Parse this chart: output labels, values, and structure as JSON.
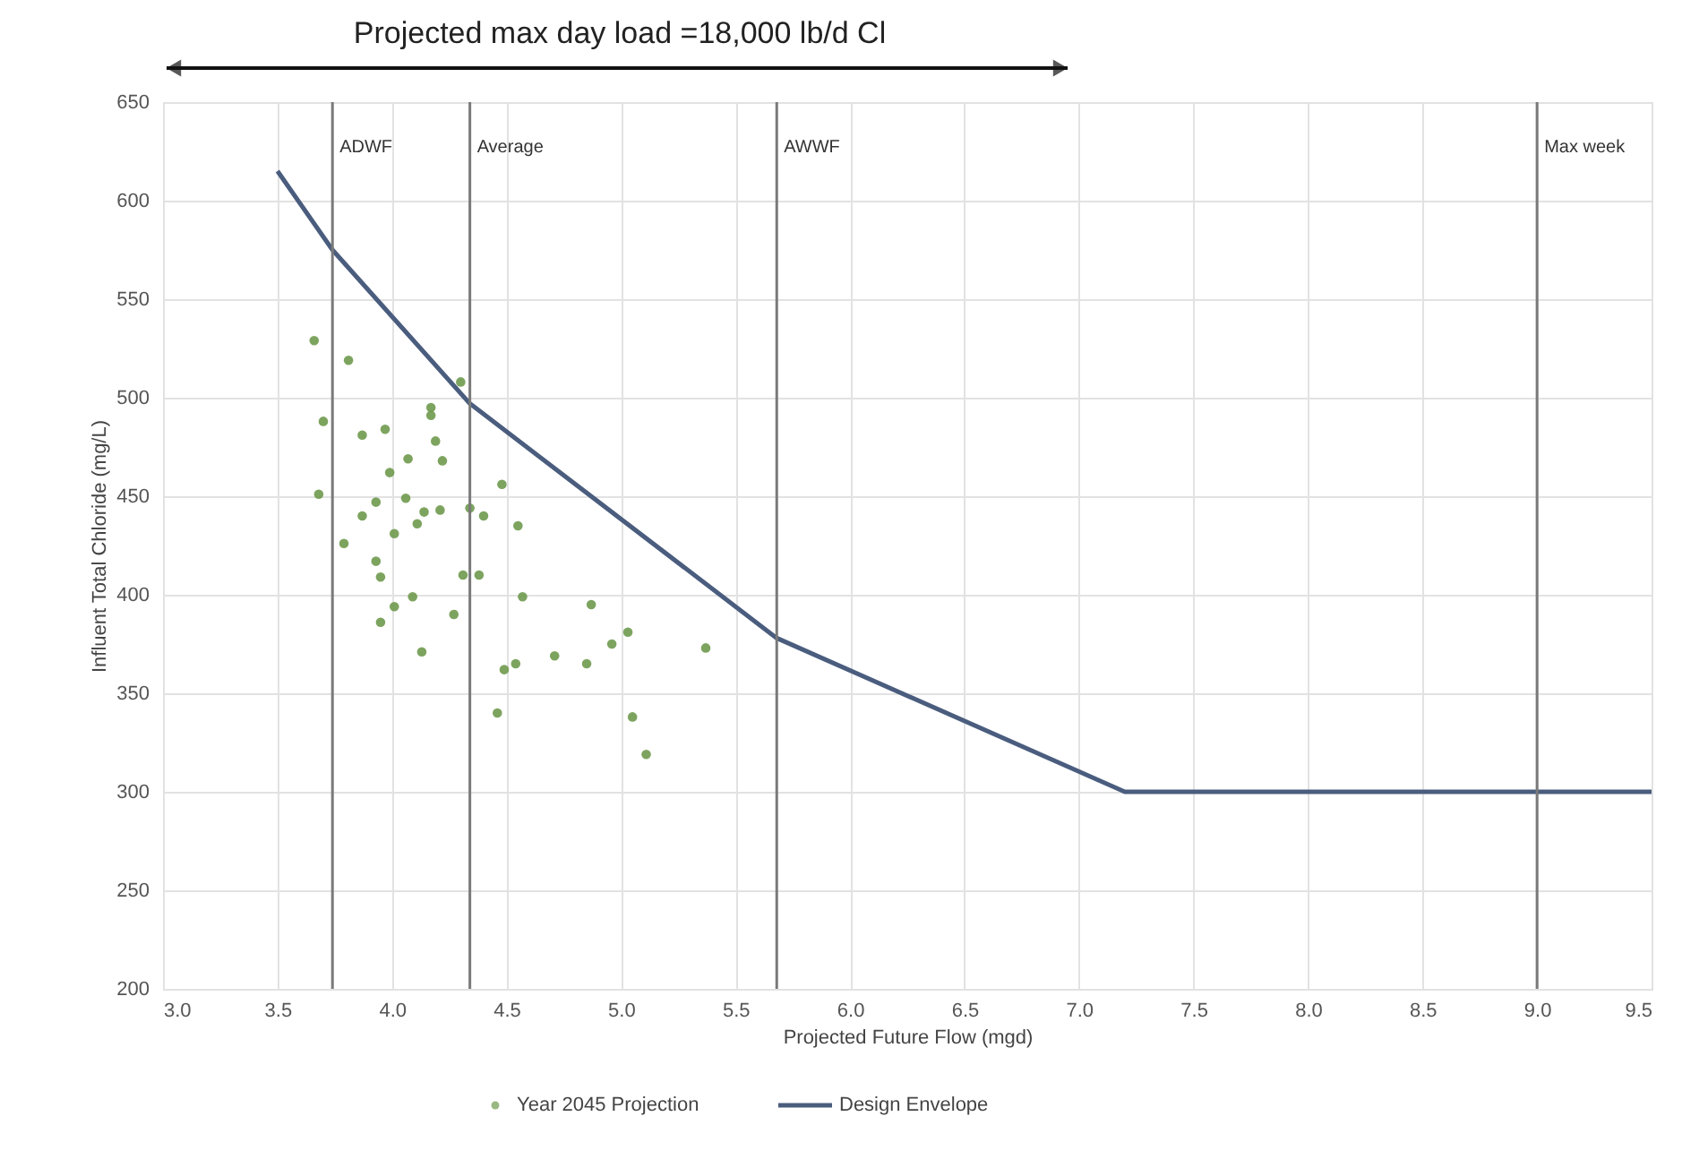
{
  "chart_data": {
    "type": "scatter",
    "title": "Projected max day load =18,000 lb/d Cl",
    "xlabel": "Projected Future Flow (mgd)",
    "ylabel": "Influent Total Chloride (mg/L)",
    "xlim": [
      3.0,
      9.5
    ],
    "xticks": [
      {
        "value": 3.0,
        "label": "3.0"
      },
      3.5,
      {
        "value": 4.0,
        "label": "4.0"
      },
      4.5,
      {
        "value": 5.0,
        "label": "5.0"
      },
      5.5,
      {
        "value": 6.0,
        "label": "6.0"
      },
      6.5,
      {
        "value": 7.0,
        "label": "7.0"
      },
      7.5,
      {
        "value": 8.0,
        "label": "8.0"
      },
      8.5,
      {
        "value": 9.0,
        "label": "9.0"
      },
      9.5
    ],
    "ylim": [
      200,
      650
    ],
    "yticks": [
      200,
      250,
      300,
      350,
      400,
      450,
      500,
      550,
      600,
      650
    ],
    "grid": true,
    "legend": "bottom",
    "series": [
      {
        "name": "Year 2045 Projection",
        "marker": "circle",
        "color": "#6f9a4e",
        "x": [
          3.66,
          3.81,
          3.7,
          3.68,
          3.79,
          3.87,
          3.97,
          4.17,
          4.17,
          4.3,
          4.19,
          4.07,
          4.22,
          3.99,
          3.93,
          4.06,
          4.14,
          4.21,
          3.87,
          4.01,
          4.11,
          4.34,
          4.4,
          4.48,
          4.55,
          3.93,
          3.95,
          4.01,
          3.95,
          4.09,
          4.31,
          4.38,
          4.27,
          4.13,
          4.57,
          4.87,
          4.49,
          4.54,
          4.71,
          4.85,
          4.96,
          5.03,
          5.37,
          4.46,
          5.05,
          5.11
        ],
        "values": [
          529,
          519,
          488,
          451,
          426,
          481,
          484,
          495,
          491,
          508,
          478,
          469,
          468,
          462,
          447,
          449,
          442,
          443,
          440,
          431,
          436,
          444,
          440,
          456,
          435,
          417,
          409,
          394,
          386,
          399,
          410,
          410,
          390,
          371,
          399,
          395,
          362,
          365,
          369,
          365,
          375,
          381,
          373,
          340,
          338,
          319
        ]
      },
      {
        "name": "Design Envelope",
        "type": "line",
        "marker": "none",
        "line_style": "solid",
        "color": "#4a5d7e",
        "x": [
          3.5,
          3.74,
          4.34,
          5.68,
          7.2,
          9.5
        ],
        "values": [
          615,
          575,
          497,
          378,
          300,
          300
        ]
      }
    ],
    "ref_lines": [
      {
        "axis": "x",
        "value": 3.74,
        "label": "ADWF",
        "color": "#7a7a7a"
      },
      {
        "axis": "x",
        "value": 4.34,
        "label": "Average",
        "color": "#7a7a7a"
      },
      {
        "axis": "x",
        "value": 5.68,
        "label": "AWWF",
        "color": "#7a7a7a"
      },
      {
        "axis": "x",
        "value": 9.0,
        "label": "Max week",
        "color": "#7a7a7a"
      }
    ]
  }
}
